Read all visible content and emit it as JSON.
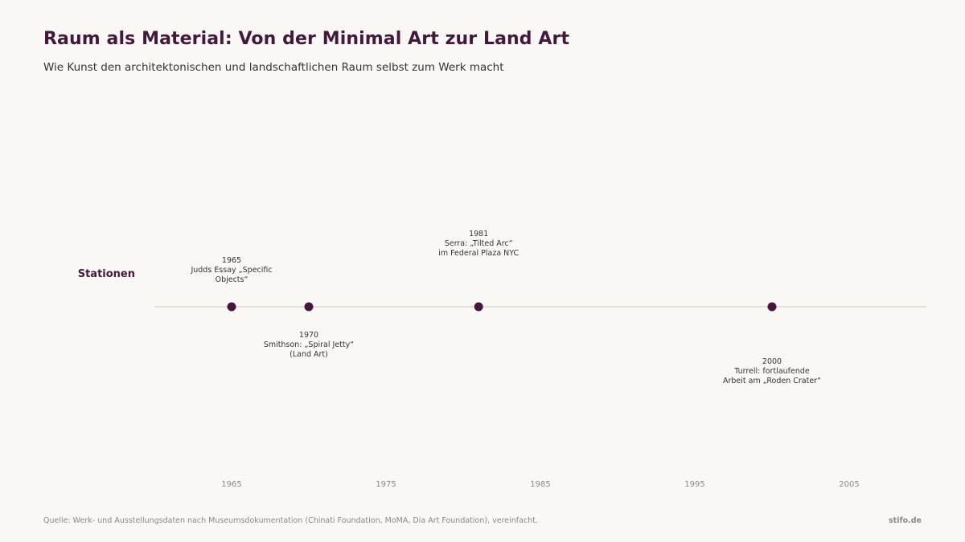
{
  "header": {
    "title": "Raum als Material: Von der Minimal Art zur Land Art",
    "subtitle": "Wie Kunst den architektonischen und landschaftlichen Raum selbst zum Werk macht"
  },
  "footer": {
    "source": "Quelle: Werk- und Ausstellungsdaten nach Museumsdokumentation (Chinati Foundation, MoMA, Dia Art Foundation), vereinfacht.",
    "brand": "stifo.de"
  },
  "chart_data": {
    "type": "scatter",
    "subtype": "timeline",
    "row_label": "Stationen",
    "xlim": [
      1960,
      2010
    ],
    "x_ticks": [
      1965,
      1975,
      1985,
      1995,
      2005
    ],
    "grid": false,
    "colors": {
      "marker": "#44183c",
      "axis_line": "#dcd8d0",
      "label_text": "#333333",
      "tick_text": "#888888"
    },
    "events": [
      {
        "year": 1965,
        "label_lines": [
          "1965",
          "Judds Essay „Specific",
          "Objects“"
        ],
        "label_position": "above"
      },
      {
        "year": 1970,
        "label_lines": [
          "1970",
          "Smithson: „Spiral Jetty“",
          "(Land Art)"
        ],
        "label_position": "below"
      },
      {
        "year": 1981,
        "label_lines": [
          "1981",
          "Serra: „Tilted Arc“",
          "im Federal Plaza NYC"
        ],
        "label_position": "above"
      },
      {
        "year": 2000,
        "label_lines": [
          "2000",
          "Turrell: fortlaufende",
          "Arbeit am „Roden Crater“"
        ],
        "label_position": "below"
      }
    ]
  }
}
